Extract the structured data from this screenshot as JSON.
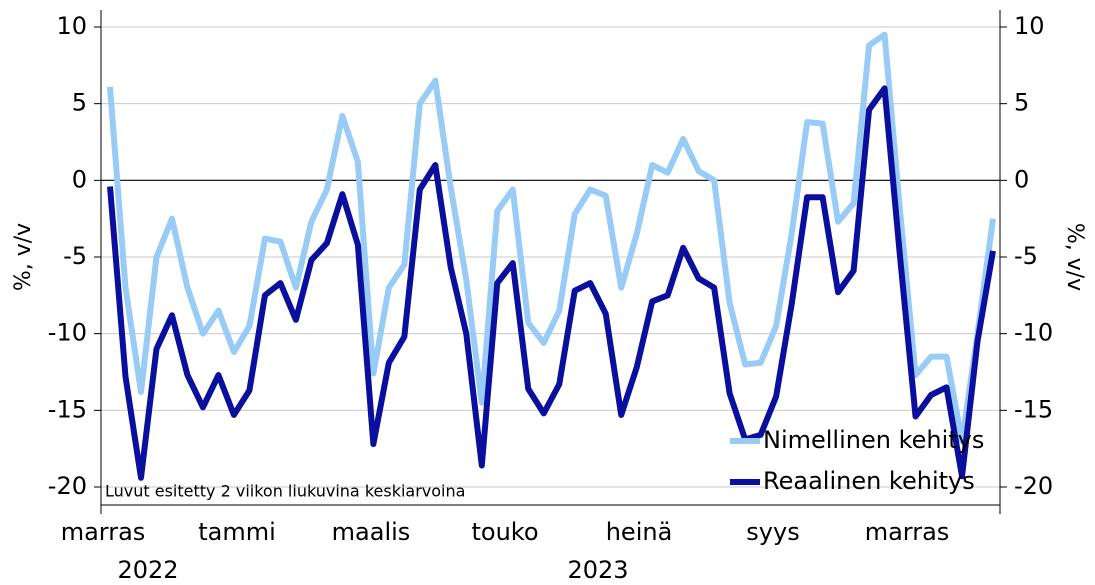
{
  "chart_data": {
    "type": "line",
    "ylabel": "%, v/v",
    "y2label": "%, v/v",
    "annotation": "Luvut esitetty 2 viikon liukuvina keskiarvoina",
    "categories": [
      null,
      null,
      null,
      null,
      null,
      null,
      null,
      null,
      null,
      null,
      null,
      null,
      null,
      null,
      null,
      null,
      null,
      null,
      null,
      null,
      null,
      null,
      null,
      null,
      null,
      null,
      null,
      null,
      null,
      null,
      null,
      null,
      null,
      null,
      null,
      null,
      null,
      null,
      null,
      null,
      null,
      null,
      null,
      null,
      null,
      null,
      null,
      null,
      null,
      null,
      null,
      null,
      null,
      null,
      null,
      null,
      null,
      null
    ],
    "month_labels": [
      "marras",
      "tammi",
      "maalis",
      "touko",
      "heinä",
      "syys",
      "marras"
    ],
    "year_labels": [
      "2022",
      "2023"
    ],
    "ylim": [
      -21,
      11
    ],
    "yticks": [
      10,
      5,
      0,
      -5,
      -10,
      -15,
      -20
    ],
    "y2lim": [
      -21,
      11
    ],
    "y2ticks": [
      10,
      5,
      0,
      -5,
      -10,
      -15,
      -20
    ],
    "grid": true,
    "legend": "lower right",
    "series": [
      {
        "name": "Nimellinen kehitys",
        "color": "#99cbf7",
        "values": [
          6.1,
          -7,
          -13.8,
          -5,
          -2.5,
          -7,
          -10,
          -8.5,
          -11.2,
          -9.5,
          -3.8,
          -4,
          -7,
          -2.7,
          -0.6,
          4.2,
          1.2,
          -12.6,
          -7,
          -5.5,
          5,
          6.5,
          -0.5,
          -6.5,
          -14.5,
          -2,
          -0.6,
          -9.3,
          -10.6,
          -8.5,
          -2.2,
          -0.6,
          -1,
          -7,
          -3.5,
          1,
          0.5,
          2.7,
          0.6,
          0,
          -8,
          -12,
          -11.9,
          -9.5,
          -3.5,
          3.8,
          3.7,
          -2.7,
          -1.5,
          8.8,
          9.5,
          -2,
          -12.7,
          -11.5,
          -11.5,
          -17,
          -10,
          -2.5
        ]
      },
      {
        "name": "Reaalinen kehitys",
        "color": "#0a0f9e",
        "values": [
          -0.4,
          -12.8,
          -19.4,
          -11,
          -8.8,
          -12.7,
          -14.8,
          -12.7,
          -15.3,
          -13.7,
          -7.5,
          -6.7,
          -9.1,
          -5.2,
          -4.1,
          -0.9,
          -4.2,
          -17.2,
          -11.9,
          -10.2,
          -0.6,
          1,
          -5.7,
          -10,
          -18.6,
          -6.7,
          -5.4,
          -13.6,
          -15.2,
          -13.3,
          -7.2,
          -6.7,
          -8.7,
          -15.3,
          -12.2,
          -7.9,
          -7.5,
          -4.4,
          -6.4,
          -7,
          -13.9,
          -16.9,
          -16.6,
          -14.1,
          -8.1,
          -1.1,
          -1.1,
          -7.3,
          -5.9,
          4.6,
          6,
          -5,
          -15.4,
          -14,
          -13.5,
          -19.3,
          -10.5,
          -4.6
        ]
      }
    ]
  }
}
